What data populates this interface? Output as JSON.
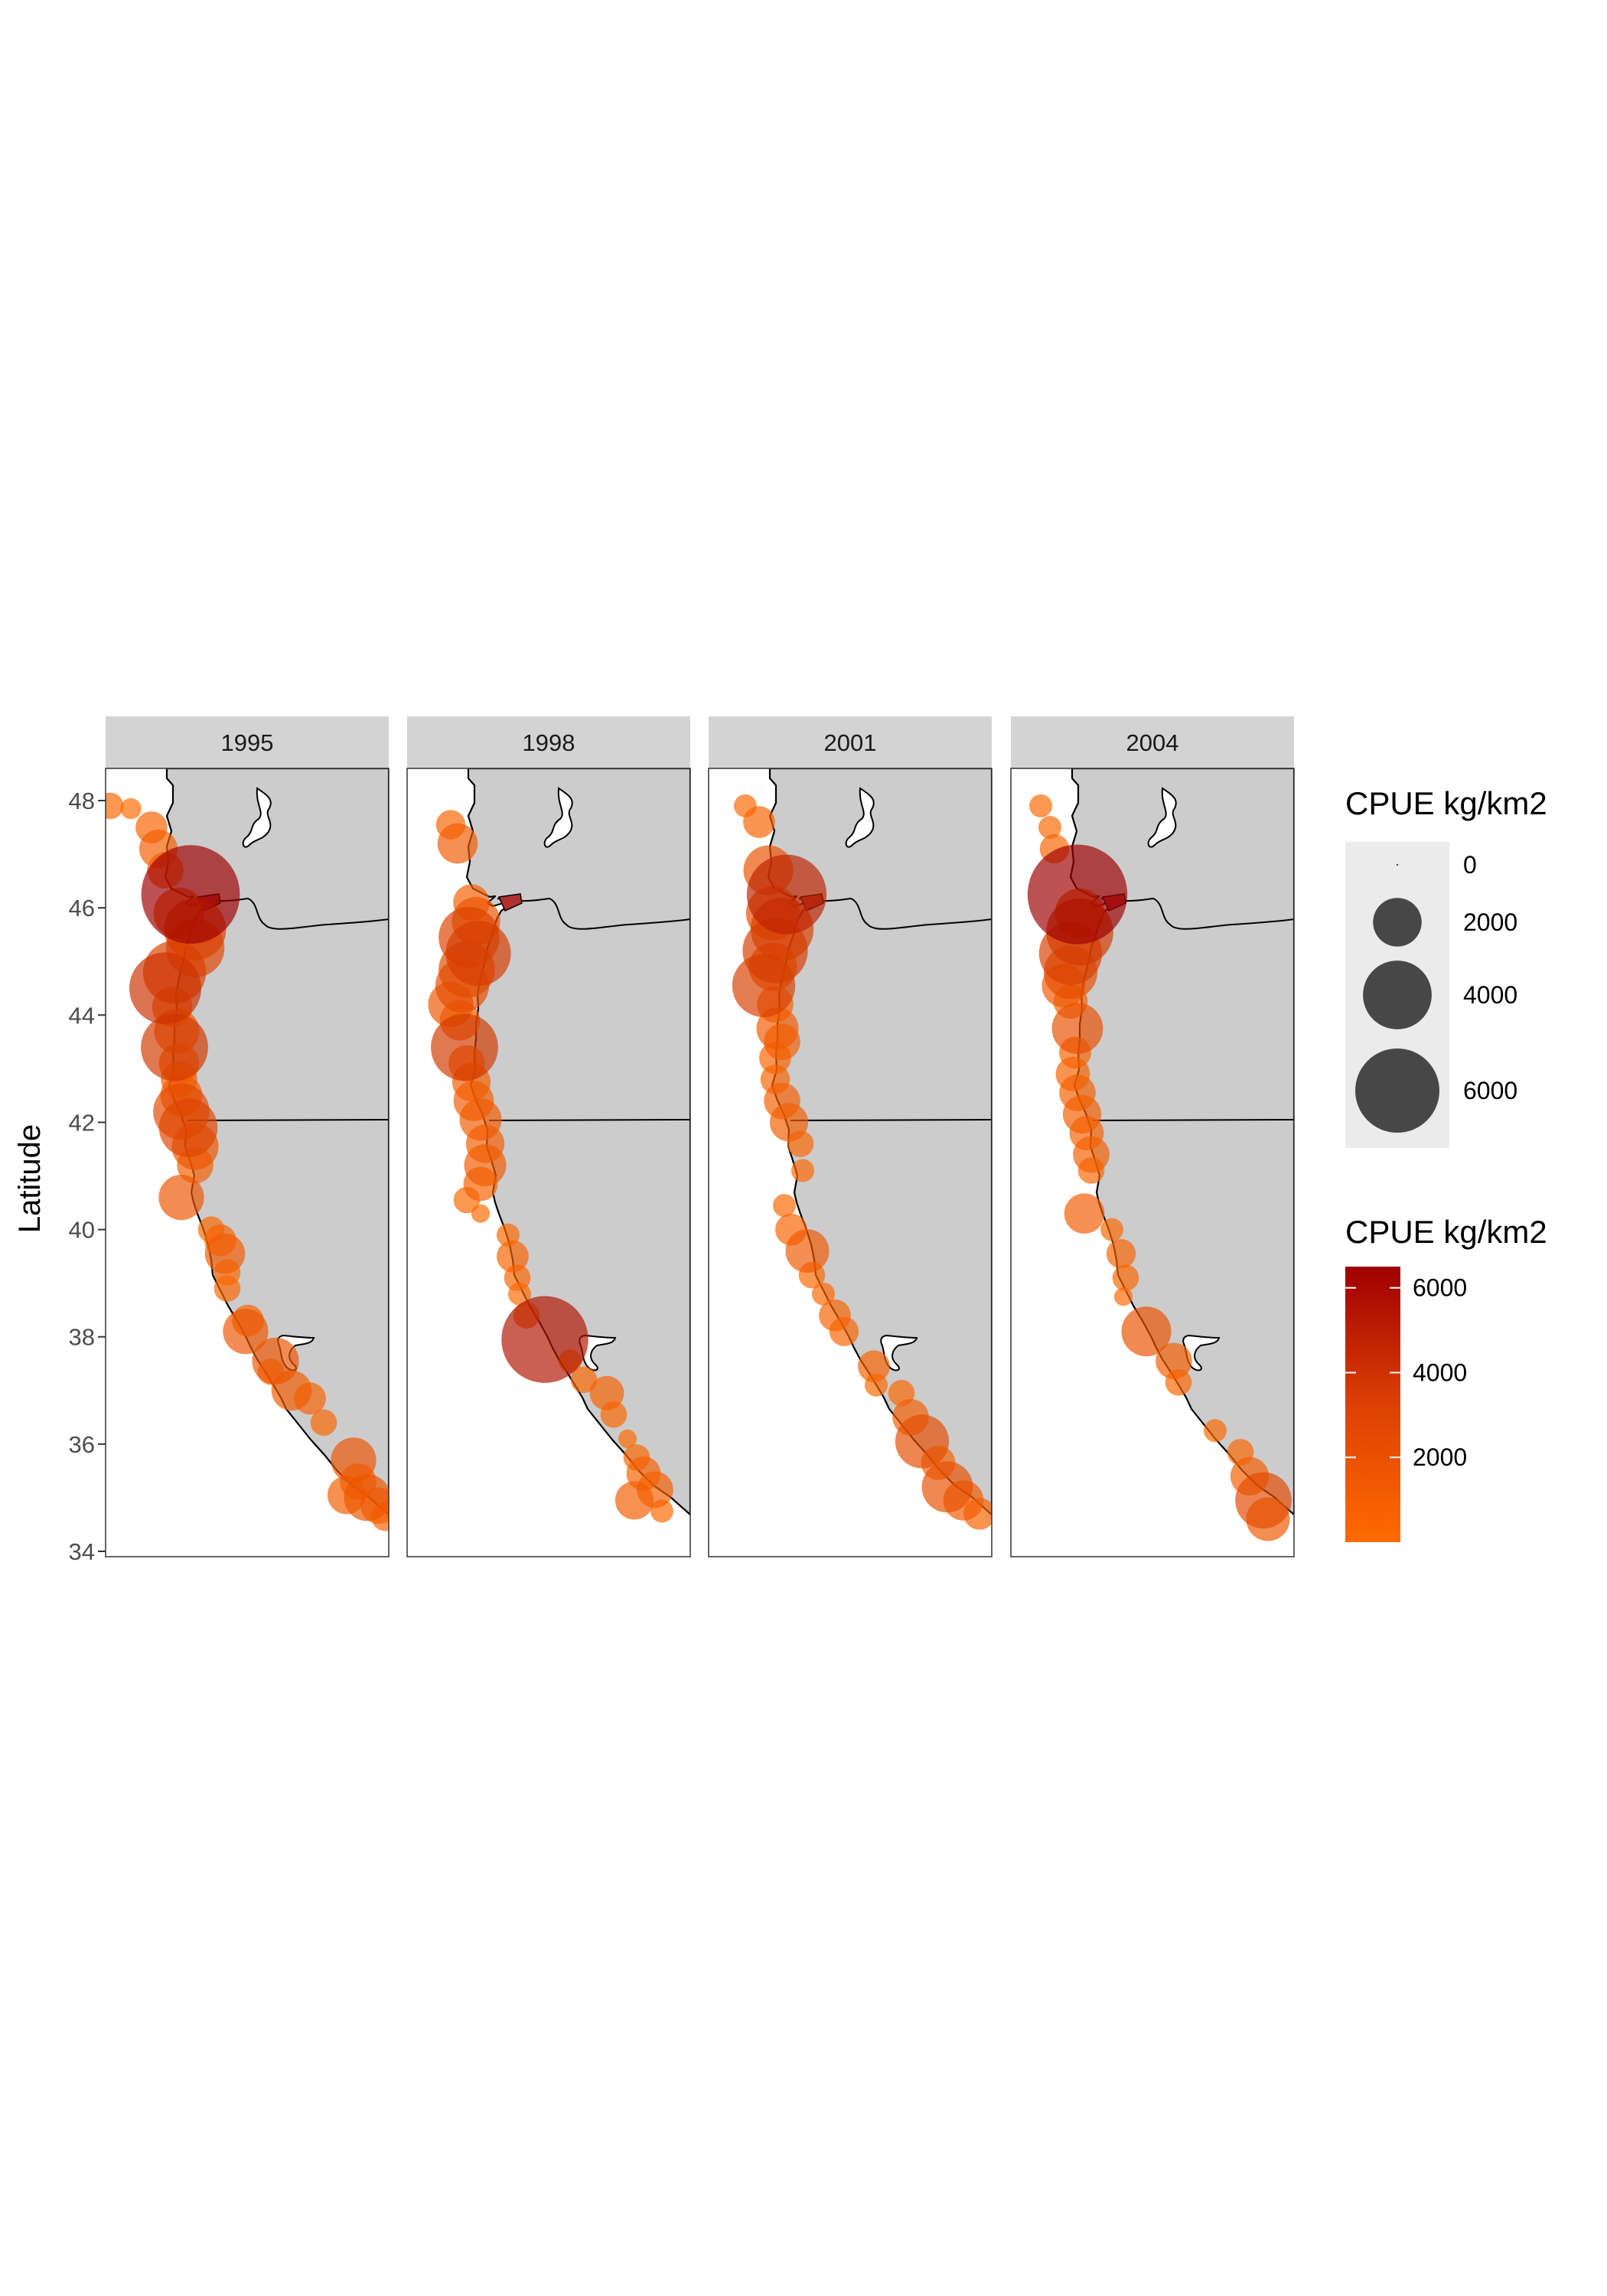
{
  "figure": {
    "y_axis_label": "Latitude",
    "lat_range": [
      33.9,
      48.6
    ],
    "lat_ticks": [
      48,
      46,
      44,
      42,
      40,
      38,
      36,
      34
    ],
    "colors": {
      "panel_fill": "#ffffff",
      "land": "#cccccc",
      "strip": "#d3d3d3",
      "bubble_low": "#ff6a00",
      "bubble_high": "#9e0000",
      "size_legend_bubble": "#474747",
      "size_legend_bg": "#ebebeb"
    },
    "panels": [
      {
        "year": "1995",
        "points": [
          {
            "lat": 47.9,
            "lon_off": 0.1,
            "cpue": 300
          },
          {
            "lat": 47.85,
            "lon_off": 0.55,
            "cpue": 150
          },
          {
            "lat": 47.5,
            "lon_off": 1.0,
            "cpue": 500
          },
          {
            "lat": 47.1,
            "lon_off": 1.15,
            "cpue": 800
          },
          {
            "lat": 46.7,
            "lon_off": 1.3,
            "cpue": 700
          },
          {
            "lat": 46.25,
            "lon_off": 1.85,
            "cpue": 7000
          },
          {
            "lat": 45.9,
            "lon_off": 1.6,
            "cpue": 1600
          },
          {
            "lat": 45.6,
            "lon_off": 1.95,
            "cpue": 2500
          },
          {
            "lat": 45.25,
            "lon_off": 1.95,
            "cpue": 2200
          },
          {
            "lat": 44.8,
            "lon_off": 1.5,
            "cpue": 2600
          },
          {
            "lat": 44.5,
            "lon_off": 1.3,
            "cpue": 3500
          },
          {
            "lat": 44.15,
            "lon_off": 1.45,
            "cpue": 900
          },
          {
            "lat": 43.7,
            "lon_off": 1.55,
            "cpue": 1200
          },
          {
            "lat": 43.4,
            "lon_off": 1.5,
            "cpue": 3000
          },
          {
            "lat": 43.1,
            "lon_off": 1.6,
            "cpue": 900
          },
          {
            "lat": 42.8,
            "lon_off": 1.6,
            "cpue": 700
          },
          {
            "lat": 42.5,
            "lon_off": 1.65,
            "cpue": 1000
          },
          {
            "lat": 42.2,
            "lon_off": 1.65,
            "cpue": 2000
          },
          {
            "lat": 41.9,
            "lon_off": 1.8,
            "cpue": 2200
          },
          {
            "lat": 41.55,
            "lon_off": 1.95,
            "cpue": 1300
          },
          {
            "lat": 41.2,
            "lon_off": 1.95,
            "cpue": 700
          },
          {
            "lat": 40.6,
            "lon_off": 1.65,
            "cpue": 1200
          },
          {
            "lat": 40.0,
            "lon_off": 2.3,
            "cpue": 300
          },
          {
            "lat": 39.8,
            "lon_off": 2.5,
            "cpue": 500
          },
          {
            "lat": 39.55,
            "lon_off": 2.6,
            "cpue": 900
          },
          {
            "lat": 39.2,
            "lon_off": 2.65,
            "cpue": 300
          },
          {
            "lat": 38.9,
            "lon_off": 2.65,
            "cpue": 300
          },
          {
            "lat": 38.3,
            "lon_off": 3.1,
            "cpue": 500
          },
          {
            "lat": 38.1,
            "lon_off": 3.05,
            "cpue": 1200
          },
          {
            "lat": 37.55,
            "lon_off": 3.7,
            "cpue": 1300
          },
          {
            "lat": 37.35,
            "lon_off": 3.6,
            "cpue": 300
          },
          {
            "lat": 37.0,
            "lon_off": 4.05,
            "cpue": 900
          },
          {
            "lat": 36.85,
            "lon_off": 4.45,
            "cpue": 500
          },
          {
            "lat": 36.4,
            "lon_off": 4.75,
            "cpue": 300
          },
          {
            "lat": 35.7,
            "lon_off": 5.4,
            "cpue": 1200
          },
          {
            "lat": 35.3,
            "lon_off": 5.5,
            "cpue": 700
          },
          {
            "lat": 35.05,
            "lon_off": 5.25,
            "cpue": 800
          },
          {
            "lat": 35.0,
            "lon_off": 5.7,
            "cpue": 1300
          },
          {
            "lat": 34.85,
            "lon_off": 5.95,
            "cpue": 700
          },
          {
            "lat": 34.65,
            "lon_off": 6.1,
            "cpue": 400
          }
        ]
      },
      {
        "year": "1998",
        "points": [
          {
            "lat": 47.55,
            "lon_off": 0.95,
            "cpue": 400
          },
          {
            "lat": 47.2,
            "lon_off": 1.1,
            "cpue": 900
          },
          {
            "lat": 46.1,
            "lon_off": 1.4,
            "cpue": 700
          },
          {
            "lat": 45.75,
            "lon_off": 1.5,
            "cpue": 1400
          },
          {
            "lat": 45.45,
            "lon_off": 1.35,
            "cpue": 2400
          },
          {
            "lat": 45.15,
            "lon_off": 1.55,
            "cpue": 2800
          },
          {
            "lat": 44.85,
            "lon_off": 1.3,
            "cpue": 2000
          },
          {
            "lat": 44.55,
            "lon_off": 1.2,
            "cpue": 1800
          },
          {
            "lat": 44.2,
            "lon_off": 0.95,
            "cpue": 1200
          },
          {
            "lat": 43.9,
            "lon_off": 1.15,
            "cpue": 900
          },
          {
            "lat": 43.4,
            "lon_off": 1.25,
            "cpue": 3000
          },
          {
            "lat": 43.1,
            "lon_off": 1.3,
            "cpue": 700
          },
          {
            "lat": 42.75,
            "lon_off": 1.4,
            "cpue": 800
          },
          {
            "lat": 42.4,
            "lon_off": 1.45,
            "cpue": 900
          },
          {
            "lat": 42.05,
            "lon_off": 1.6,
            "cpue": 1000
          },
          {
            "lat": 41.6,
            "lon_off": 1.7,
            "cpue": 800
          },
          {
            "lat": 41.2,
            "lon_off": 1.7,
            "cpue": 1000
          },
          {
            "lat": 40.85,
            "lon_off": 1.6,
            "cpue": 600
          },
          {
            "lat": 40.55,
            "lon_off": 1.3,
            "cpue": 300
          },
          {
            "lat": 40.3,
            "lon_off": 1.6,
            "cpue": 100
          },
          {
            "lat": 39.9,
            "lon_off": 2.2,
            "cpue": 200
          },
          {
            "lat": 39.5,
            "lon_off": 2.3,
            "cpue": 500
          },
          {
            "lat": 39.1,
            "lon_off": 2.4,
            "cpue": 300
          },
          {
            "lat": 38.8,
            "lon_off": 2.45,
            "cpue": 200
          },
          {
            "lat": 38.4,
            "lon_off": 2.6,
            "cpue": 300
          },
          {
            "lat": 37.95,
            "lon_off": 3.0,
            "cpue": 5300
          },
          {
            "lat": 37.55,
            "lon_off": 3.55,
            "cpue": 200
          },
          {
            "lat": 37.2,
            "lon_off": 3.85,
            "cpue": 300
          },
          {
            "lat": 36.95,
            "lon_off": 4.35,
            "cpue": 600
          },
          {
            "lat": 36.55,
            "lon_off": 4.5,
            "cpue": 300
          },
          {
            "lat": 36.1,
            "lon_off": 4.8,
            "cpue": 100
          },
          {
            "lat": 35.75,
            "lon_off": 5.0,
            "cpue": 300
          },
          {
            "lat": 35.45,
            "lon_off": 5.15,
            "cpue": 600
          },
          {
            "lat": 35.15,
            "lon_off": 5.4,
            "cpue": 700
          },
          {
            "lat": 34.95,
            "lon_off": 4.95,
            "cpue": 800
          },
          {
            "lat": 34.75,
            "lon_off": 5.55,
            "cpue": 200
          }
        ]
      },
      {
        "year": "2001",
        "points": [
          {
            "lat": 47.9,
            "lon_off": 0.8,
            "cpue": 200
          },
          {
            "lat": 47.6,
            "lon_off": 1.1,
            "cpue": 500
          },
          {
            "lat": 46.7,
            "lon_off": 1.3,
            "cpue": 1500
          },
          {
            "lat": 46.25,
            "lon_off": 1.7,
            "cpue": 4400
          },
          {
            "lat": 45.9,
            "lon_off": 1.4,
            "cpue": 1800
          },
          {
            "lat": 45.6,
            "lon_off": 1.6,
            "cpue": 2600
          },
          {
            "lat": 45.2,
            "lon_off": 1.45,
            "cpue": 2800
          },
          {
            "lat": 44.9,
            "lon_off": 1.4,
            "cpue": 1400
          },
          {
            "lat": 44.55,
            "lon_off": 1.2,
            "cpue": 2600
          },
          {
            "lat": 44.2,
            "lon_off": 1.45,
            "cpue": 700
          },
          {
            "lat": 43.75,
            "lon_off": 1.5,
            "cpue": 1000
          },
          {
            "lat": 43.5,
            "lon_off": 1.6,
            "cpue": 700
          },
          {
            "lat": 43.2,
            "lon_off": 1.45,
            "cpue": 500
          },
          {
            "lat": 42.8,
            "lon_off": 1.45,
            "cpue": 400
          },
          {
            "lat": 42.4,
            "lon_off": 1.6,
            "cpue": 700
          },
          {
            "lat": 42.0,
            "lon_off": 1.75,
            "cpue": 800
          },
          {
            "lat": 41.6,
            "lon_off": 2.0,
            "cpue": 300
          },
          {
            "lat": 41.1,
            "lon_off": 2.05,
            "cpue": 200
          },
          {
            "lat": 40.45,
            "lon_off": 1.65,
            "cpue": 200
          },
          {
            "lat": 40.0,
            "lon_off": 1.8,
            "cpue": 500
          },
          {
            "lat": 39.6,
            "lon_off": 2.15,
            "cpue": 1100
          },
          {
            "lat": 39.15,
            "lon_off": 2.25,
            "cpue": 300
          },
          {
            "lat": 38.8,
            "lon_off": 2.5,
            "cpue": 200
          },
          {
            "lat": 38.4,
            "lon_off": 2.75,
            "cpue": 500
          },
          {
            "lat": 38.1,
            "lon_off": 2.95,
            "cpue": 400
          },
          {
            "lat": 37.45,
            "lon_off": 3.6,
            "cpue": 500
          },
          {
            "lat": 37.1,
            "lon_off": 3.65,
            "cpue": 200
          },
          {
            "lat": 36.95,
            "lon_off": 4.2,
            "cpue": 300
          },
          {
            "lat": 36.5,
            "lon_off": 4.4,
            "cpue": 700
          },
          {
            "lat": 36.05,
            "lon_off": 4.65,
            "cpue": 1800
          },
          {
            "lat": 35.65,
            "lon_off": 5.0,
            "cpue": 600
          },
          {
            "lat": 35.2,
            "lon_off": 5.2,
            "cpue": 1600
          },
          {
            "lat": 34.95,
            "lon_off": 5.55,
            "cpue": 900
          },
          {
            "lat": 34.7,
            "lon_off": 5.9,
            "cpue": 500
          }
        ]
      },
      {
        "year": "2004",
        "points": [
          {
            "lat": 47.9,
            "lon_off": 0.65,
            "cpue": 200
          },
          {
            "lat": 47.5,
            "lon_off": 0.85,
            "cpue": 200
          },
          {
            "lat": 47.1,
            "lon_off": 0.95,
            "cpue": 400
          },
          {
            "lat": 46.25,
            "lon_off": 1.45,
            "cpue": 7200
          },
          {
            "lat": 45.9,
            "lon_off": 1.5,
            "cpue": 1500
          },
          {
            "lat": 45.55,
            "lon_off": 1.5,
            "cpue": 3000
          },
          {
            "lat": 45.15,
            "lon_off": 1.3,
            "cpue": 2600
          },
          {
            "lat": 44.8,
            "lon_off": 1.3,
            "cpue": 1800
          },
          {
            "lat": 44.55,
            "lon_off": 1.15,
            "cpue": 1100
          },
          {
            "lat": 44.25,
            "lon_off": 1.3,
            "cpue": 600
          },
          {
            "lat": 43.75,
            "lon_off": 1.45,
            "cpue": 1600
          },
          {
            "lat": 43.3,
            "lon_off": 1.4,
            "cpue": 500
          },
          {
            "lat": 42.9,
            "lon_off": 1.35,
            "cpue": 600
          },
          {
            "lat": 42.55,
            "lon_off": 1.45,
            "cpue": 700
          },
          {
            "lat": 42.15,
            "lon_off": 1.55,
            "cpue": 800
          },
          {
            "lat": 41.8,
            "lon_off": 1.65,
            "cpue": 600
          },
          {
            "lat": 41.4,
            "lon_off": 1.75,
            "cpue": 700
          },
          {
            "lat": 41.1,
            "lon_off": 1.75,
            "cpue": 300
          },
          {
            "lat": 40.3,
            "lon_off": 1.6,
            "cpue": 900
          },
          {
            "lat": 40.0,
            "lon_off": 2.2,
            "cpue": 200
          },
          {
            "lat": 39.55,
            "lon_off": 2.4,
            "cpue": 400
          },
          {
            "lat": 39.1,
            "lon_off": 2.5,
            "cpue": 300
          },
          {
            "lat": 38.75,
            "lon_off": 2.45,
            "cpue": 100
          },
          {
            "lat": 38.1,
            "lon_off": 2.95,
            "cpue": 1500
          },
          {
            "lat": 37.55,
            "lon_off": 3.55,
            "cpue": 700
          },
          {
            "lat": 37.15,
            "lon_off": 3.65,
            "cpue": 300
          },
          {
            "lat": 36.25,
            "lon_off": 4.45,
            "cpue": 200
          },
          {
            "lat": 35.85,
            "lon_off": 5.0,
            "cpue": 300
          },
          {
            "lat": 35.4,
            "lon_off": 5.2,
            "cpue": 800
          },
          {
            "lat": 34.95,
            "lon_off": 5.5,
            "cpue": 2000
          },
          {
            "lat": 34.6,
            "lon_off": 5.6,
            "cpue": 1100
          }
        ]
      }
    ]
  },
  "legend_size": {
    "title": "CPUE kg/km2",
    "entries": [
      {
        "value": 0,
        "label": "0"
      },
      {
        "value": 2000,
        "label": "2000"
      },
      {
        "value": 4000,
        "label": "4000"
      },
      {
        "value": 6000,
        "label": "6000"
      }
    ]
  },
  "legend_color": {
    "title": "CPUE kg/km2",
    "range": [
      0,
      6500
    ],
    "breaks": [
      {
        "value": 6000,
        "label": "6000"
      },
      {
        "value": 4000,
        "label": "4000"
      },
      {
        "value": 2000,
        "label": "2000"
      }
    ]
  }
}
